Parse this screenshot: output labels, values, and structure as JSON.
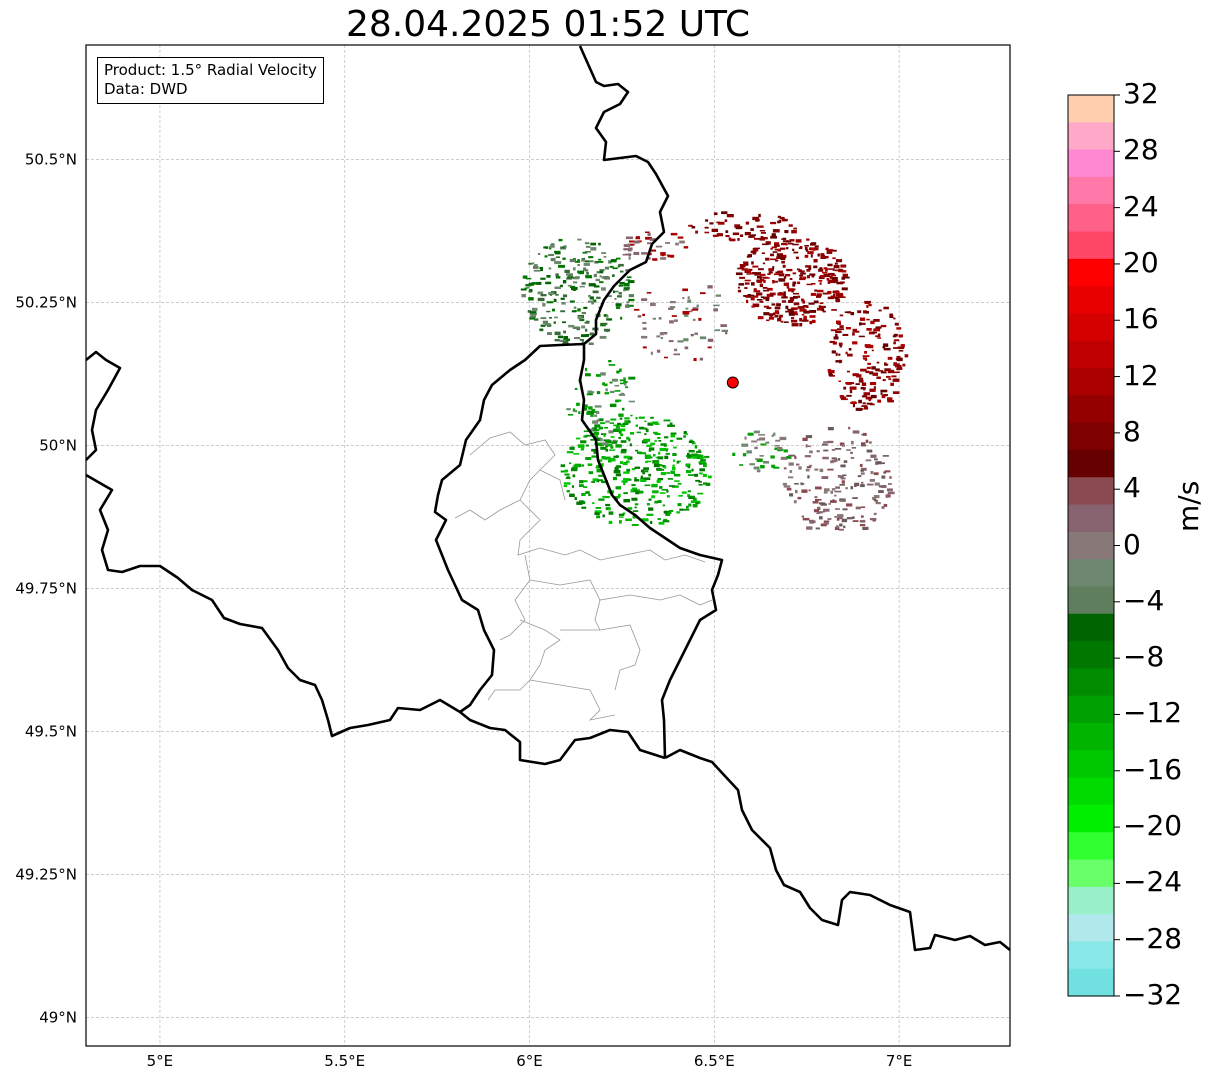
{
  "title": "28.04.2025 01:52 UTC",
  "info": {
    "product": "Product: 1.5° Radial Velocity",
    "source": "Data: DWD"
  },
  "axes": {
    "lon_ticks": [
      {
        "value": 5.0,
        "label": "5°E"
      },
      {
        "value": 5.5,
        "label": "5.5°E"
      },
      {
        "value": 6.0,
        "label": "6°E"
      },
      {
        "value": 6.5,
        "label": "6.5°E"
      },
      {
        "value": 7.0,
        "label": "7°E"
      }
    ],
    "lat_ticks": [
      {
        "value": 50.5,
        "label": "50.5°N"
      },
      {
        "value": 50.25,
        "label": "50.25°N"
      },
      {
        "value": 50.0,
        "label": "50°N"
      },
      {
        "value": 49.75,
        "label": "49.75°N"
      },
      {
        "value": 49.5,
        "label": "49.5°N"
      },
      {
        "value": 49.25,
        "label": "49.25°N"
      },
      {
        "value": 49.0,
        "label": "49°N"
      }
    ],
    "grid": true,
    "lon_range": [
      4.8,
      7.3
    ],
    "lat_range": [
      48.95,
      50.7
    ]
  },
  "radar_site": {
    "lon": 6.55,
    "lat": 50.11,
    "color": "#ff0000"
  },
  "colorbar": {
    "unit": "m/s",
    "min": -32,
    "max": 32,
    "tick_labels": [
      "32",
      "28",
      "24",
      "20",
      "16",
      "12",
      "8",
      "4",
      "0",
      "−4",
      "−8",
      "−12",
      "−16",
      "−20",
      "−24",
      "−28",
      "−32"
    ],
    "colors_top_to_bottom": [
      "#ffcfb0",
      "#ffa8c8",
      "#ff88d0",
      "#ff78a8",
      "#ff6088",
      "#ff4868",
      "#ff0000",
      "#e80000",
      "#d40000",
      "#c00000",
      "#aa0000",
      "#940000",
      "#7e0000",
      "#660000",
      "#8a4a50",
      "#886470",
      "#887878",
      "#6e8870",
      "#5e7e5e",
      "#006400",
      "#007800",
      "#008c00",
      "#00a000",
      "#00b400",
      "#00c800",
      "#00dc00",
      "#00f000",
      "#30ff30",
      "#68ff68",
      "#98f0c8",
      "#b0e8ec",
      "#88e8e8",
      "#70e0e0"
    ]
  },
  "features": {
    "border_color": "#000000",
    "district_color": "#999999"
  }
}
